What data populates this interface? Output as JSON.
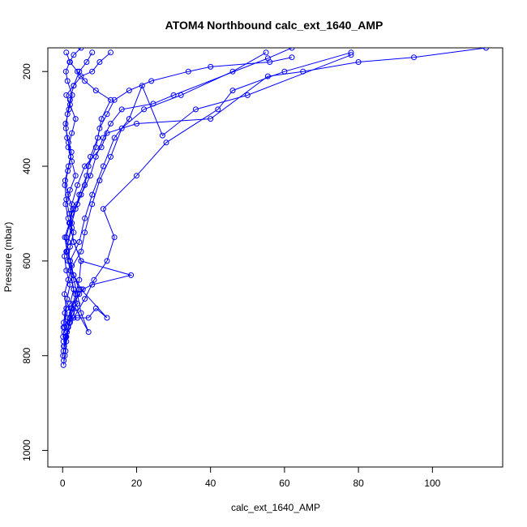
{
  "chart_data": {
    "type": "line",
    "title": "ATOM4 Northbound calc_ext_1640_AMP",
    "xlabel": "calc_ext_1640_AMP",
    "ylabel": "Pressure (mbar)",
    "xlim": [
      -4,
      119
    ],
    "ylim": [
      1035,
      150
    ],
    "y_reversed": true,
    "grid": false,
    "x_ticks": [
      0,
      20,
      40,
      60,
      80,
      100
    ],
    "y_ticks": [
      200,
      400,
      600,
      800,
      1000
    ],
    "color": "#0000ff",
    "marker": "open-circle",
    "series": [
      {
        "x": [
          0.2,
          0.6,
          1.0,
          3.0,
          6.0,
          8.5,
          12.0,
          14.0,
          11.0,
          20.0,
          28.0,
          42.0,
          46.0,
          60.0,
          78.0
        ],
        "y": [
          820,
          800,
          760,
          720,
          680,
          640,
          600,
          550,
          490,
          420,
          350,
          280,
          240,
          200,
          160
        ]
      },
      {
        "x": [
          0.3,
          0.8,
          1.5,
          2.5,
          4.0,
          3.0,
          2.0,
          5.0,
          6.0,
          8.0,
          10.0,
          13.0,
          16.0,
          22.0,
          32.0,
          46.0,
          55.0
        ],
        "y": [
          810,
          790,
          740,
          710,
          690,
          660,
          620,
          580,
          540,
          480,
          430,
          380,
          320,
          280,
          250,
          200,
          160
        ]
      },
      {
        "x": [
          0.1,
          0.4,
          1.0,
          1.8,
          2.5,
          3.5,
          4.5,
          5.0,
          3.0,
          2.0,
          4.0,
          6.0,
          7.0,
          9.0,
          10.0,
          12.0,
          14.0,
          18.0,
          24.0,
          34.0,
          40.0,
          56.0,
          62.0
        ],
        "y": [
          800,
          780,
          770,
          730,
          700,
          670,
          640,
          600,
          560,
          520,
          480,
          440,
          400,
          360,
          320,
          290,
          260,
          240,
          220,
          200,
          190,
          180,
          170
        ]
      },
      {
        "x": [
          0.2,
          1.0,
          2.0,
          4.0,
          7.0,
          9.0,
          12.0,
          5.0,
          3.0,
          2.0,
          4.5,
          6.0,
          8.0,
          11.0,
          14.0,
          18.0,
          21.5,
          27.0,
          36.0,
          50.0,
          78.0
        ],
        "y": [
          790,
          760,
          720,
          720,
          720,
          700,
          720,
          660,
          630,
          600,
          560,
          510,
          460,
          400,
          340,
          300,
          230,
          335,
          280,
          250,
          165
        ]
      },
      {
        "x": [
          0.3,
          0.8,
          1.5,
          2.2,
          3.0,
          4.5,
          5.5,
          8.0,
          18.5,
          5.0,
          3.0,
          2.0,
          2.5,
          4.0,
          6.0,
          10.5,
          12.0,
          20.0,
          40.0,
          55.5,
          65.0,
          80.0,
          95.0,
          114.5
        ],
        "y": [
          780,
          760,
          740,
          700,
          690,
          670,
          660,
          650,
          630,
          600,
          560,
          520,
          480,
          440,
          400,
          360,
          330,
          310,
          300,
          210,
          200,
          180,
          170,
          150
        ]
      },
      {
        "x": [
          0.2,
          1.2,
          2.0,
          3.5,
          7.0,
          5.0,
          4.0,
          3.0,
          2.0,
          1.0,
          2.5,
          5.0,
          7.5,
          9.0,
          11.0,
          13.0,
          16.0,
          24.5,
          30.0,
          55.5,
          62.0
        ],
        "y": [
          770,
          750,
          730,
          700,
          750,
          710,
          670,
          640,
          600,
          550,
          500,
          460,
          420,
          380,
          340,
          310,
          280,
          268,
          250,
          172,
          150
        ]
      },
      {
        "x": [
          0.1,
          0.5,
          1.0,
          2.0,
          3.0,
          2.0,
          1.0,
          1.5,
          2.5,
          3.5,
          4.5,
          6.5,
          7.5,
          9.5,
          10.5,
          13.0,
          9.0,
          6.0,
          4.0,
          2.0,
          1.0
        ],
        "y": [
          760,
          740,
          700,
          690,
          660,
          620,
          580,
          560,
          520,
          490,
          460,
          420,
          380,
          340,
          300,
          260,
          240,
          220,
          200,
          180,
          160
        ]
      },
      {
        "x": [
          0.4,
          1.5,
          2.5,
          4.5,
          3.0,
          1.5,
          2.0,
          3.0,
          1.5,
          0.8,
          2.0,
          3.5,
          2.5,
          1.5,
          2.5,
          3.5,
          2.0,
          1.0,
          3.0,
          5.0,
          8.0,
          10.0,
          13.0
        ],
        "y": [
          750,
          720,
          700,
          660,
          630,
          600,
          570,
          540,
          510,
          480,
          450,
          420,
          390,
          360,
          330,
          300,
          270,
          250,
          230,
          210,
          200,
          180,
          160
        ]
      },
      {
        "x": [
          0.2,
          0.6,
          1.2,
          2.0,
          1.0,
          0.5,
          1.5,
          2.5,
          1.8,
          1.0,
          0.6,
          1.4,
          2.2,
          1.6,
          0.9,
          1.3,
          2.0,
          3.0,
          4.5,
          6.5,
          8.0
        ],
        "y": [
          740,
          710,
          680,
          650,
          620,
          590,
          560,
          530,
          500,
          470,
          440,
          410,
          380,
          350,
          320,
          290,
          260,
          230,
          200,
          180,
          160
        ]
      },
      {
        "x": [
          0.3,
          1.0,
          0.5,
          1.5,
          2.5,
          1.2,
          0.6,
          1.8,
          2.8,
          1.4,
          0.7,
          1.6,
          2.4,
          1.2,
          0.8,
          1.7,
          2.6,
          1.3,
          0.9,
          1.9,
          3.0,
          5.0
        ],
        "y": [
          730,
          700,
          670,
          640,
          610,
          580,
          550,
          520,
          490,
          460,
          430,
          400,
          370,
          340,
          310,
          280,
          250,
          220,
          200,
          180,
          165,
          150
        ]
      }
    ]
  }
}
